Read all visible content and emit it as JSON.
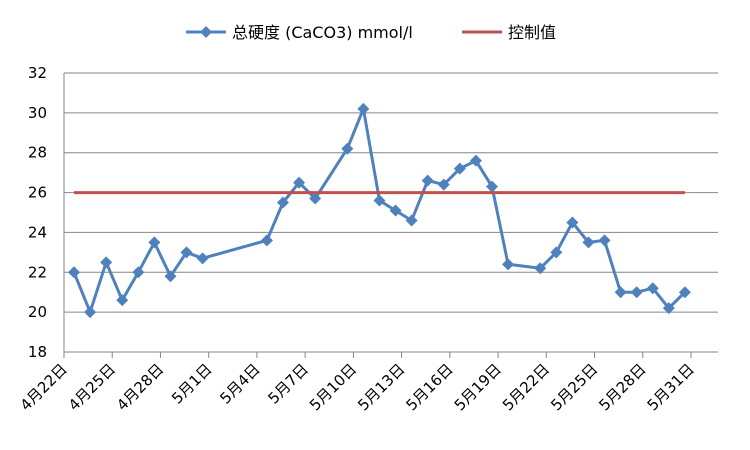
{
  "chart_data": {
    "type": "line",
    "title": "",
    "xlabel": "",
    "ylabel": "",
    "ylim": [
      18,
      32
    ],
    "y_ticks": [
      18,
      20,
      22,
      24,
      26,
      28,
      30,
      32
    ],
    "grid": true,
    "legend_placement": "top",
    "x_range": [
      "4-22",
      "5-31"
    ],
    "x_ticks": [
      {
        "date": "4-22",
        "label": "4月22日"
      },
      {
        "date": "4-25",
        "label": "4月25日"
      },
      {
        "date": "4-28",
        "label": "4月28日"
      },
      {
        "date": "5-1",
        "label": "5月1日"
      },
      {
        "date": "5-4",
        "label": "5月4日"
      },
      {
        "date": "5-7",
        "label": "5月7日"
      },
      {
        "date": "5-10",
        "label": "5月10日"
      },
      {
        "date": "5-13",
        "label": "5月13日"
      },
      {
        "date": "5-16",
        "label": "5月16日"
      },
      {
        "date": "5-19",
        "label": "5月19日"
      },
      {
        "date": "5-22",
        "label": "5月22日"
      },
      {
        "date": "5-25",
        "label": "5月25日"
      },
      {
        "date": "5-28",
        "label": "5月28日"
      },
      {
        "date": "5-31",
        "label": "5月31日"
      }
    ],
    "series": [
      {
        "name": "总硬度 (CaCO3) mmol/l",
        "color": "#4F81BD",
        "marker": "diamond",
        "points": [
          {
            "x": "4-22",
            "y": 22.0
          },
          {
            "x": "4-23",
            "y": 20.0
          },
          {
            "x": "4-24",
            "y": 22.5
          },
          {
            "x": "4-25",
            "y": 20.6
          },
          {
            "x": "4-26",
            "y": 22.0
          },
          {
            "x": "4-27",
            "y": 23.5
          },
          {
            "x": "4-28",
            "y": 21.8
          },
          {
            "x": "4-29",
            "y": 23.0
          },
          {
            "x": "4-30",
            "y": 22.7
          },
          {
            "x": "5-4",
            "y": 23.6
          },
          {
            "x": "5-5",
            "y": 25.5
          },
          {
            "x": "5-6",
            "y": 26.5
          },
          {
            "x": "5-7",
            "y": 25.7
          },
          {
            "x": "5-9",
            "y": 28.2
          },
          {
            "x": "5-10",
            "y": 30.2
          },
          {
            "x": "5-11",
            "y": 25.6
          },
          {
            "x": "5-12",
            "y": 25.1
          },
          {
            "x": "5-13",
            "y": 24.6
          },
          {
            "x": "5-14",
            "y": 26.6
          },
          {
            "x": "5-15",
            "y": 26.4
          },
          {
            "x": "5-16",
            "y": 27.2
          },
          {
            "x": "5-17",
            "y": 27.6
          },
          {
            "x": "5-18",
            "y": 26.3
          },
          {
            "x": "5-19",
            "y": 22.4
          },
          {
            "x": "5-21",
            "y": 22.2
          },
          {
            "x": "5-22",
            "y": 23.0
          },
          {
            "x": "5-23",
            "y": 24.5
          },
          {
            "x": "5-24",
            "y": 23.5
          },
          {
            "x": "5-25",
            "y": 23.6
          },
          {
            "x": "5-26",
            "y": 21.0
          },
          {
            "x": "5-27",
            "y": 21.0
          },
          {
            "x": "5-28",
            "y": 21.2
          },
          {
            "x": "5-29",
            "y": 20.2
          },
          {
            "x": "5-30",
            "y": 21.0
          }
        ]
      },
      {
        "name": "控制值",
        "color": "#C0504D",
        "marker": "none",
        "points": [
          {
            "x": "4-22",
            "y": 26
          },
          {
            "x": "5-30",
            "y": 26
          }
        ]
      }
    ]
  }
}
